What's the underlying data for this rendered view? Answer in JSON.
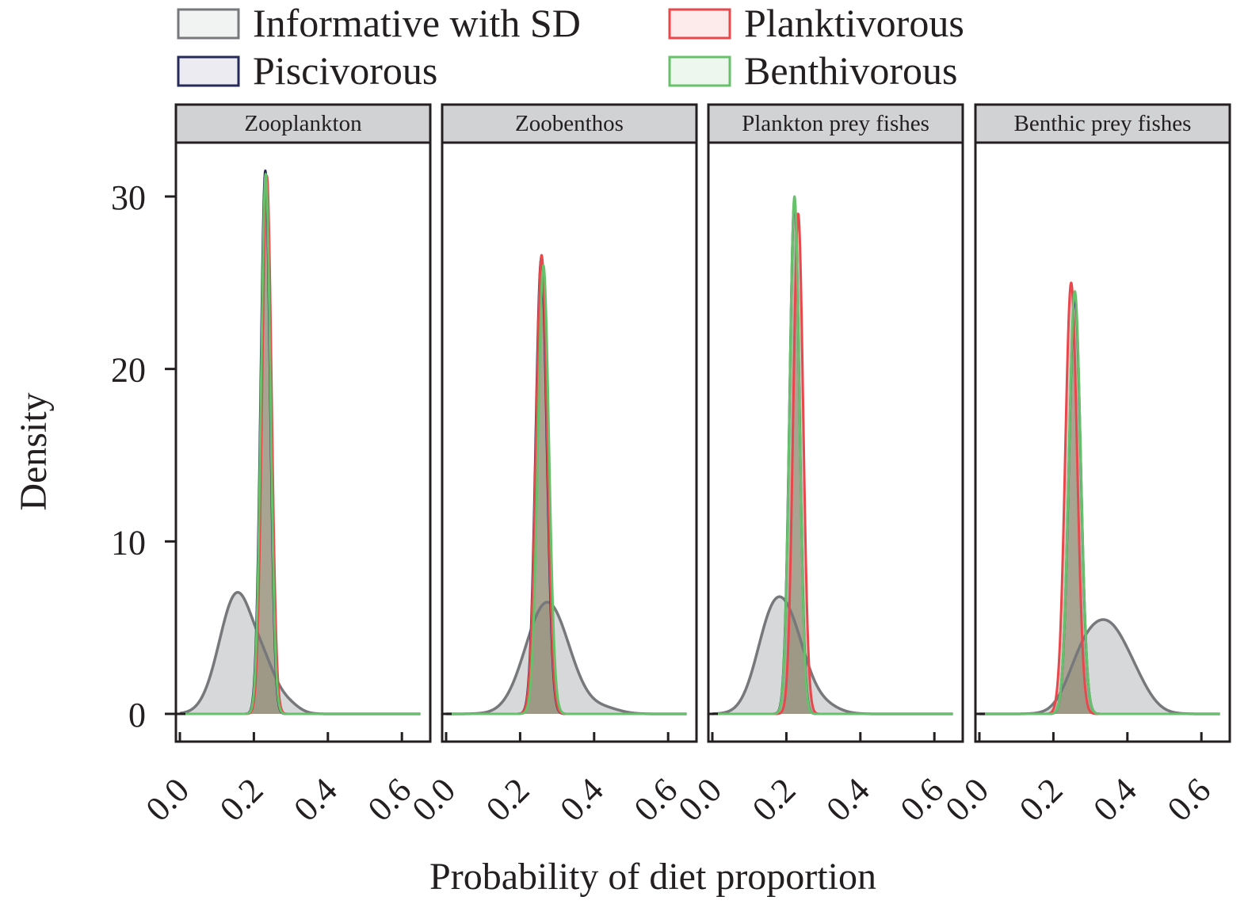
{
  "chart_data": {
    "type": "area",
    "subtype": "faceted density plot",
    "xlabel": "Probability of diet proportion",
    "ylabel": "Density",
    "ylim": [
      -1.5,
      34
    ],
    "xlim": [
      -0.02,
      0.66
    ],
    "y_ticks": [
      0,
      10,
      20,
      30
    ],
    "x_ticks": [
      0.0,
      0.2,
      0.4,
      0.6
    ],
    "x_tick_labels": [
      "0.0",
      "0.2",
      "0.4",
      "0.6"
    ],
    "x_tick_label_rotation": "45 degrees",
    "grid": false,
    "legend": {
      "placement": "top",
      "columns": 2,
      "entries": [
        {
          "name": "Informative with SD",
          "key": "prior",
          "stroke": "#77787b",
          "fill": "#f1f2f2"
        },
        {
          "name": "Planktivorous",
          "key": "plankt",
          "stroke": "#e8474b",
          "fill": "#fdeaea"
        },
        {
          "name": "Piscivorous",
          "key": "pisc",
          "stroke": "#262a5a",
          "fill": "#ebebf1"
        },
        {
          "name": "Benthivorous",
          "key": "benth",
          "stroke": "#67c16b",
          "fill": "#eef7ee"
        }
      ]
    },
    "series_style": {
      "prior": {
        "stroke": "#77787b",
        "fill": "#bcbec0",
        "fill_opacity": 0.6
      },
      "pisc": {
        "stroke": "#262a5a",
        "fill": "#6a6a7a",
        "fill_opacity": 0.35
      },
      "plankt": {
        "stroke": "#e8474b",
        "fill": "#9a6a5a",
        "fill_opacity": 0.35
      },
      "benth": {
        "stroke": "#67c16b",
        "fill": "#8a9a6a",
        "fill_opacity": 0.35
      }
    },
    "panels": [
      {
        "title": "Zooplankton",
        "series": [
          {
            "key": "prior",
            "mode": [
              [
                0.155,
                7.0,
                0.048
              ],
              [
                0.235,
                1.5,
                0.03
              ],
              [
                0.29,
                0.6,
                0.03
              ]
            ]
          },
          {
            "key": "pisc",
            "mode": [
              [
                0.231,
                31.5,
                0.0127
              ]
            ]
          },
          {
            "key": "plankt",
            "mode": [
              [
                0.235,
                31.2,
                0.0128
              ]
            ]
          },
          {
            "key": "benth",
            "mode": [
              [
                0.232,
                31.3,
                0.0127
              ]
            ]
          }
        ]
      },
      {
        "title": "Zoobenthos",
        "series": [
          {
            "key": "prior",
            "mode": [
              [
                0.265,
                5.7,
                0.055
              ],
              [
                0.32,
                1.3,
                0.05
              ],
              [
                0.43,
                0.3,
                0.04
              ]
            ]
          },
          {
            "key": "pisc",
            "mode": [
              [
                0.257,
                26.4,
                0.015
              ]
            ]
          },
          {
            "key": "plankt",
            "mode": [
              [
                0.258,
                26.6,
                0.015
              ]
            ]
          },
          {
            "key": "benth",
            "mode": [
              [
                0.263,
                26.0,
                0.015
              ]
            ]
          }
        ]
      },
      {
        "title": "Plankton prey fishes",
        "series": [
          {
            "key": "prior",
            "mode": [
              [
                0.165,
                5.6,
                0.045
              ],
              [
                0.225,
                2.8,
                0.04
              ],
              [
                0.3,
                0.5,
                0.04
              ]
            ]
          },
          {
            "key": "pisc",
            "mode": [
              [
                0.222,
                29.8,
                0.0135
              ]
            ]
          },
          {
            "key": "plankt",
            "mode": [
              [
                0.232,
                29.0,
                0.0135
              ]
            ]
          },
          {
            "key": "benth",
            "mode": [
              [
                0.222,
                30.0,
                0.0133
              ]
            ]
          }
        ]
      },
      {
        "title": "Benthic prey fishes",
        "series": [
          {
            "key": "prior",
            "mode": [
              [
                0.345,
                5.1,
                0.06
              ],
              [
                0.27,
                1.5,
                0.04
              ],
              [
                0.43,
                0.6,
                0.04
              ]
            ]
          },
          {
            "key": "pisc",
            "mode": [
              [
                0.258,
                24.2,
                0.016
              ]
            ]
          },
          {
            "key": "plankt",
            "mode": [
              [
                0.248,
                25.0,
                0.016
              ]
            ]
          },
          {
            "key": "benth",
            "mode": [
              [
                0.258,
                24.5,
                0.016
              ]
            ]
          }
        ]
      }
    ],
    "peak_summary": [
      {
        "panel": "Zooplankton",
        "prior_peak": [
          0.155,
          7.0
        ],
        "Piscivorous_peak": [
          0.231,
          31.5
        ],
        "Planktivorous_peak": [
          0.235,
          31.2
        ],
        "Benthivorous_peak": [
          0.232,
          31.3
        ]
      },
      {
        "panel": "Zoobenthos",
        "prior_peak": [
          0.275,
          5.8
        ],
        "Piscivorous_peak": [
          0.257,
          26.4
        ],
        "Planktivorous_peak": [
          0.258,
          26.6
        ],
        "Benthivorous_peak": [
          0.263,
          26.0
        ]
      },
      {
        "panel": "Plankton prey fishes",
        "prior_peak": [
          0.165,
          6.1
        ],
        "Piscivorous_peak": [
          0.222,
          29.8
        ],
        "Planktivorous_peak": [
          0.232,
          29.0
        ],
        "Benthivorous_peak": [
          0.222,
          30.0
        ]
      },
      {
        "panel": "Benthic prey fishes",
        "prior_peak": [
          0.345,
          5.3
        ],
        "Piscivorous_peak": [
          0.258,
          24.2
        ],
        "Planktivorous_peak": [
          0.248,
          25.0
        ],
        "Benthivorous_peak": [
          0.258,
          24.5
        ]
      }
    ]
  }
}
